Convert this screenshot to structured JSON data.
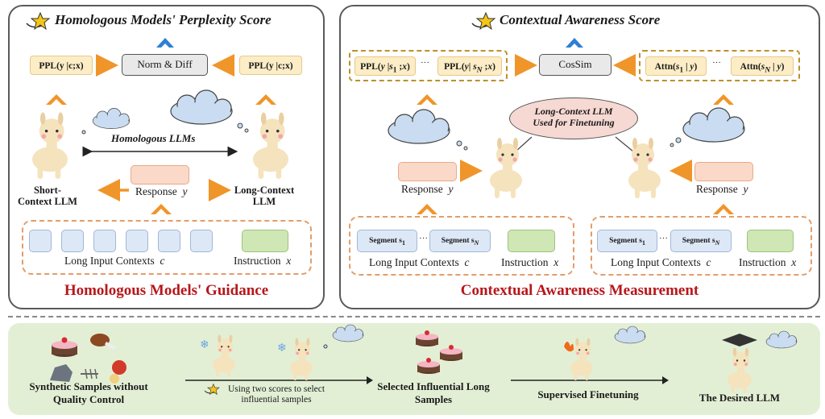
{
  "left_panel": {
    "title": "Homologous Models' Perplexity Score",
    "ppl_left": "PPL(y |c;x)",
    "ppl_right": "PPL(y |c;x)",
    "norm_diff": "Norm & Diff",
    "homologous_llms": "Homologous LLMs",
    "short_llm": "Short-Context LLM",
    "long_llm": "Long-Context LLM",
    "response_label": "Response",
    "response_var": "y",
    "contexts_label": "Long Input Contexts",
    "contexts_var": "c",
    "instruction_label": "Instruction",
    "instruction_var": "x",
    "footer": "Homologous Models' Guidance"
  },
  "right_panel": {
    "title": "Contextual Awareness Score",
    "ppl_first": "PPL(y |s1 ;x)",
    "ppl_last": "PPL(y| sN ;x)",
    "ellipsis": "···",
    "cossim": "CosSim",
    "attn_first": "Attn(s1 | y)",
    "attn_last": "Attn(sN | y)",
    "callout": "Long-Context LLM Used for Finetuning",
    "response_label": "Response",
    "response_var": "y",
    "segment_first": "Segment s1",
    "segment_last": "Segment sN",
    "contexts_label": "Long Input Contexts",
    "contexts_var": "c",
    "instruction_label": "Instruction",
    "instruction_var": "x",
    "footer": "Contextual Awareness Measurement"
  },
  "bottom": {
    "synthetic": "Synthetic Samples without Quality Control",
    "using_scores": "Using two scores to select influential samples",
    "selected": "Selected Influential Long Samples",
    "sft": "Supervised Finetuning",
    "desired": "The Desired LLM"
  },
  "colors": {
    "arrow_orange": "#f0952a",
    "title_red": "#b8161b",
    "bottom_bg": "#e3efd5",
    "up_arrow_blue": "#2f7fd3"
  }
}
